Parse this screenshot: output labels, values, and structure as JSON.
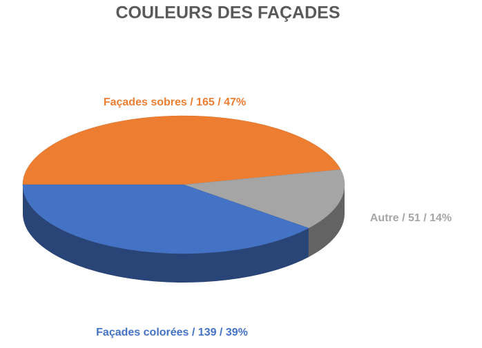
{
  "chart_data": {
    "type": "pie3d",
    "title": "COULEURS DES FAÇADES",
    "values": [
      165,
      51,
      139
    ],
    "value_labels": [
      "Façades sobres / 165 / 47%",
      "Autre / 51 / 14%",
      "Façades colorées / 139 / 39%"
    ],
    "colors": [
      "#ED7D31",
      "#A5A5A5",
      "#4472C4"
    ]
  }
}
